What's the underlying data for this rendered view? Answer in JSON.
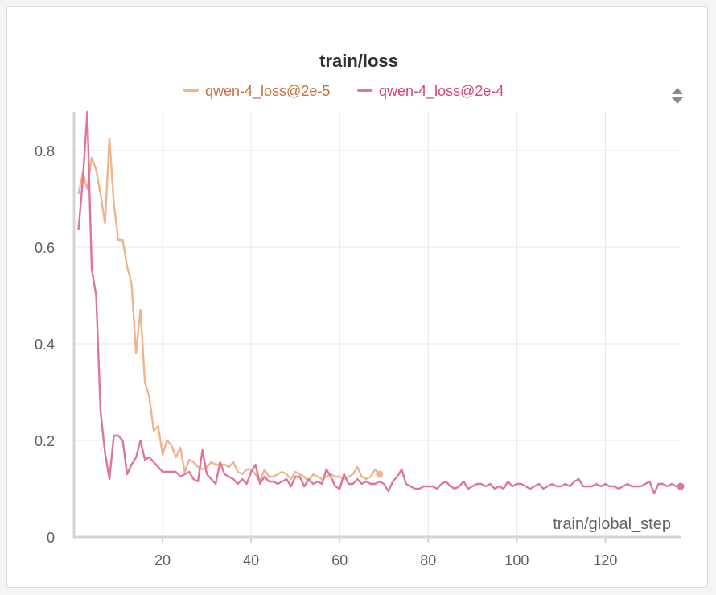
{
  "chart_data": {
    "type": "line",
    "title": "train/loss",
    "xlabel": "train/global_step",
    "ylabel": "",
    "xlim": [
      0,
      137
    ],
    "ylim": [
      0,
      0.88
    ],
    "xticks": [
      20,
      40,
      60,
      80,
      100,
      120
    ],
    "yticks": [
      0,
      0.2,
      0.4,
      0.6,
      0.8
    ],
    "ytick_labels": [
      "0",
      "0.2",
      "0.4",
      "0.6",
      "0.8"
    ],
    "grid": true,
    "legend_position": "top-center",
    "series": [
      {
        "name": "qwen-4_loss@2e-5",
        "color": "#f0b48c",
        "x": [
          1,
          2,
          3,
          4,
          5,
          6,
          7,
          8,
          9,
          10,
          11,
          12,
          13,
          14,
          15,
          16,
          17,
          18,
          19,
          20,
          21,
          22,
          23,
          24,
          25,
          26,
          27,
          28,
          29,
          30,
          31,
          32,
          33,
          34,
          35,
          36,
          37,
          38,
          39,
          40,
          41,
          42,
          43,
          44,
          45,
          46,
          47,
          48,
          49,
          50,
          51,
          52,
          53,
          54,
          55,
          56,
          57,
          58,
          59,
          60,
          61,
          62,
          63,
          64,
          65,
          66,
          67,
          68,
          69
        ],
        "y": [
          0.71,
          0.755,
          0.72,
          0.785,
          0.76,
          0.71,
          0.65,
          0.825,
          0.69,
          0.615,
          0.615,
          0.56,
          0.525,
          0.38,
          0.47,
          0.32,
          0.29,
          0.22,
          0.23,
          0.17,
          0.2,
          0.19,
          0.165,
          0.185,
          0.135,
          0.16,
          0.155,
          0.145,
          0.14,
          0.145,
          0.155,
          0.15,
          0.15,
          0.15,
          0.145,
          0.155,
          0.135,
          0.13,
          0.14,
          0.14,
          0.13,
          0.115,
          0.14,
          0.125,
          0.125,
          0.13,
          0.135,
          0.13,
          0.12,
          0.135,
          0.13,
          0.125,
          0.115,
          0.13,
          0.125,
          0.12,
          0.125,
          0.13,
          0.125,
          0.125,
          0.12,
          0.125,
          0.13,
          0.145,
          0.125,
          0.12,
          0.125,
          0.14,
          0.13
        ]
      },
      {
        "name": "qwen-4_loss@2e-4",
        "color": "#e0749a",
        "x": [
          1,
          2,
          3,
          4,
          5,
          6,
          7,
          8,
          9,
          10,
          11,
          12,
          13,
          14,
          15,
          16,
          17,
          18,
          19,
          20,
          21,
          22,
          23,
          24,
          25,
          26,
          27,
          28,
          29,
          30,
          31,
          32,
          33,
          34,
          35,
          36,
          37,
          38,
          39,
          40,
          41,
          42,
          43,
          44,
          45,
          46,
          47,
          48,
          49,
          50,
          51,
          52,
          53,
          54,
          55,
          56,
          57,
          58,
          59,
          60,
          61,
          62,
          63,
          64,
          65,
          66,
          67,
          68,
          69,
          70,
          71,
          72,
          73,
          74,
          75,
          76,
          77,
          78,
          79,
          80,
          81,
          82,
          83,
          84,
          85,
          86,
          87,
          88,
          89,
          90,
          91,
          92,
          93,
          94,
          95,
          96,
          97,
          98,
          99,
          100,
          101,
          102,
          103,
          104,
          105,
          106,
          107,
          108,
          109,
          110,
          111,
          112,
          113,
          114,
          115,
          116,
          117,
          118,
          119,
          120,
          121,
          122,
          123,
          124,
          125,
          126,
          127,
          128,
          129,
          130,
          131,
          132,
          133,
          134,
          135,
          136,
          137
        ],
        "y": [
          0.635,
          0.74,
          0.88,
          0.555,
          0.5,
          0.26,
          0.175,
          0.12,
          0.21,
          0.21,
          0.2,
          0.13,
          0.15,
          0.165,
          0.2,
          0.16,
          0.165,
          0.155,
          0.145,
          0.135,
          0.135,
          0.135,
          0.135,
          0.125,
          0.13,
          0.135,
          0.12,
          0.115,
          0.18,
          0.13,
          0.12,
          0.11,
          0.155,
          0.13,
          0.125,
          0.12,
          0.11,
          0.12,
          0.11,
          0.135,
          0.15,
          0.11,
          0.125,
          0.115,
          0.115,
          0.11,
          0.115,
          0.12,
          0.105,
          0.125,
          0.125,
          0.105,
          0.12,
          0.11,
          0.115,
          0.11,
          0.14,
          0.125,
          0.105,
          0.1,
          0.13,
          0.11,
          0.11,
          0.12,
          0.11,
          0.115,
          0.11,
          0.11,
          0.115,
          0.11,
          0.095,
          0.115,
          0.125,
          0.14,
          0.11,
          0.105,
          0.1,
          0.1,
          0.105,
          0.105,
          0.105,
          0.1,
          0.11,
          0.115,
          0.105,
          0.1,
          0.105,
          0.115,
          0.1,
          0.105,
          0.11,
          0.11,
          0.105,
          0.11,
          0.1,
          0.105,
          0.1,
          0.115,
          0.105,
          0.11,
          0.11,
          0.105,
          0.1,
          0.105,
          0.11,
          0.1,
          0.105,
          0.11,
          0.105,
          0.105,
          0.11,
          0.105,
          0.115,
          0.12,
          0.105,
          0.105,
          0.105,
          0.11,
          0.105,
          0.11,
          0.105,
          0.105,
          0.1,
          0.105,
          0.11,
          0.105,
          0.105,
          0.105,
          0.11,
          0.115,
          0.09,
          0.11,
          0.11,
          0.105,
          0.11,
          0.105,
          0.105
        ]
      }
    ]
  }
}
